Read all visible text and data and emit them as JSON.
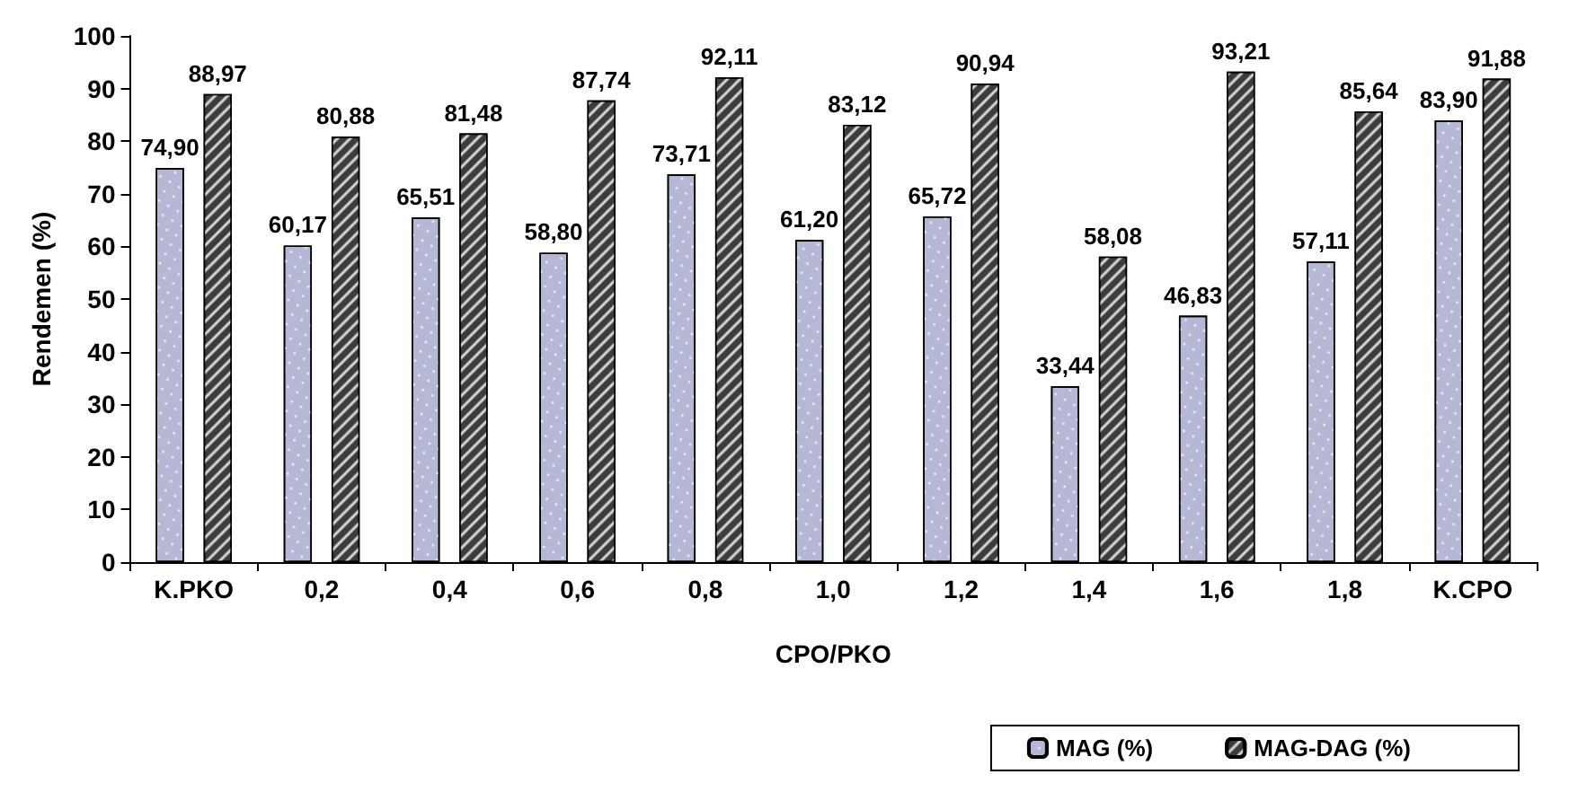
{
  "chart_data": {
    "type": "bar",
    "xlabel": "CPO/PKO",
    "ylabel": "Rendemen (%)",
    "categories": [
      "K.PKO",
      "0,2",
      "0,4",
      "0,6",
      "0,8",
      "1,0",
      "1,2",
      "1,4",
      "1,6",
      "1,8",
      "K.CPO"
    ],
    "series": [
      {
        "name": "MAG (%)",
        "color": "#b4b8d4",
        "values": [
          74.9,
          60.17,
          65.51,
          58.8,
          73.71,
          61.2,
          65.72,
          33.44,
          46.83,
          57.11,
          83.9
        ],
        "value_labels": [
          "74,90",
          "60,17",
          "65,51",
          "58,80",
          "73,71",
          "61,20",
          "65,72",
          "33,44",
          "46,83",
          "57,11",
          "83,90"
        ]
      },
      {
        "name": "MAG-DAG (%)",
        "color": "#3c3c3c",
        "values": [
          88.97,
          80.88,
          81.48,
          87.74,
          92.11,
          83.12,
          90.94,
          58.08,
          93.21,
          85.64,
          91.88
        ],
        "value_labels": [
          "88,97",
          "80,88",
          "81,48",
          "87,74",
          "92,11",
          "83,12",
          "90,94",
          "58,08",
          "93,21",
          "85,64",
          "91,88"
        ]
      }
    ],
    "ylim": [
      0,
      100
    ],
    "yticks": [
      0,
      10,
      20,
      30,
      40,
      50,
      60,
      70,
      80,
      90,
      100
    ],
    "grid": false,
    "legend": "bottom right"
  }
}
